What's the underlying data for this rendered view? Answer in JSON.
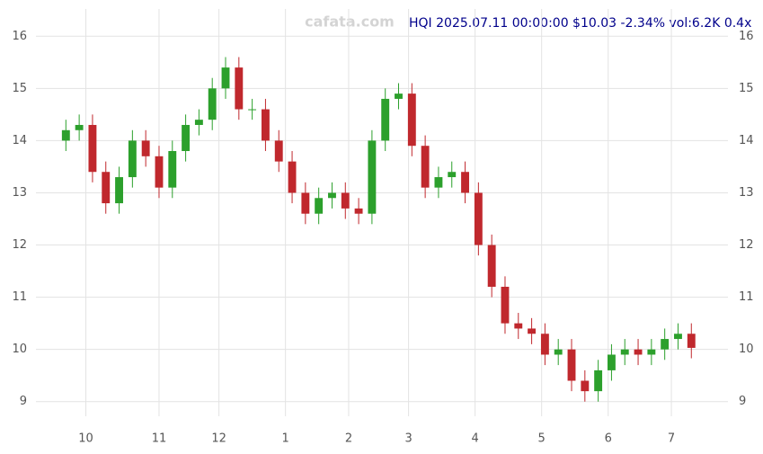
{
  "chart_data": {
    "type": "candlestick",
    "title": "HQI 2025.07.11 00:00:00 $10.03 -2.34% vol:6.2K 0.4x",
    "watermark": "cafata.com",
    "x": [
      0,
      4,
      8,
      12,
      16,
      20,
      24,
      28,
      32,
      36,
      40,
      44,
      48,
      52,
      56,
      60,
      64,
      68,
      72,
      76,
      80,
      84,
      88,
      92,
      96,
      100,
      104,
      108,
      112,
      116,
      120,
      124,
      128,
      132,
      136,
      140,
      144,
      148,
      152,
      156,
      160,
      164,
      168,
      172,
      176,
      180,
      184,
      188
    ],
    "open": [
      14.0,
      14.2,
      14.3,
      13.4,
      12.8,
      13.3,
      14.0,
      13.7,
      13.1,
      13.8,
      14.3,
      14.4,
      15.0,
      15.4,
      14.6,
      14.6,
      14.0,
      13.6,
      13.0,
      12.6,
      12.9,
      13.0,
      12.7,
      12.6,
      14.0,
      14.8,
      14.9,
      13.9,
      13.1,
      13.3,
      13.4,
      13.0,
      12.0,
      11.2,
      10.5,
      10.4,
      10.3,
      9.9,
      10.0,
      9.4,
      9.2,
      9.6,
      9.9,
      10.0,
      9.9,
      10.0,
      10.2,
      10.3
    ],
    "high": [
      14.4,
      14.5,
      14.5,
      13.6,
      13.5,
      14.2,
      14.2,
      13.9,
      14.0,
      14.5,
      14.6,
      15.2,
      15.6,
      15.6,
      14.8,
      14.8,
      14.2,
      13.8,
      13.2,
      13.1,
      13.2,
      13.2,
      12.9,
      14.2,
      15.0,
      15.1,
      15.1,
      14.1,
      13.5,
      13.6,
      13.6,
      13.2,
      12.2,
      11.4,
      10.7,
      10.6,
      10.5,
      10.2,
      10.2,
      9.6,
      9.8,
      10.1,
      10.2,
      10.2,
      10.2,
      10.4,
      10.5,
      10.5
    ],
    "low": [
      13.8,
      14.0,
      13.2,
      12.6,
      12.6,
      13.1,
      13.5,
      12.9,
      12.9,
      13.6,
      14.1,
      14.2,
      14.8,
      14.4,
      14.4,
      13.8,
      13.4,
      12.8,
      12.4,
      12.4,
      12.7,
      12.5,
      12.4,
      12.4,
      13.8,
      14.6,
      13.7,
      12.9,
      12.9,
      13.1,
      12.8,
      11.8,
      11.0,
      10.3,
      10.2,
      10.1,
      9.7,
      9.7,
      9.2,
      9.0,
      9.0,
      9.4,
      9.7,
      9.7,
      9.7,
      9.8,
      10.0,
      9.83
    ],
    "close": [
      14.2,
      14.3,
      13.4,
      12.8,
      13.3,
      14.0,
      13.7,
      13.1,
      13.8,
      14.3,
      14.4,
      15.0,
      15.4,
      14.6,
      14.6,
      14.0,
      13.6,
      13.0,
      12.6,
      12.9,
      13.0,
      12.7,
      12.6,
      14.0,
      14.8,
      14.9,
      13.9,
      13.1,
      13.3,
      13.4,
      13.0,
      12.0,
      11.2,
      10.5,
      10.4,
      10.3,
      9.9,
      10.0,
      9.4,
      9.2,
      9.6,
      9.9,
      10.0,
      9.9,
      10.0,
      10.2,
      10.3,
      10.03
    ],
    "up_color": "#2ca02c",
    "down_color": "#c0282d",
    "xlim": [
      -9,
      199
    ],
    "xticks": [
      {
        "value": 6,
        "label": "10"
      },
      {
        "value": 28,
        "label": "11"
      },
      {
        "value": 46,
        "label": "12"
      },
      {
        "value": 66,
        "label": "1"
      },
      {
        "value": 85,
        "label": "2"
      },
      {
        "value": 103,
        "label": "3"
      },
      {
        "value": 123,
        "label": "4"
      },
      {
        "value": 143,
        "label": "5"
      },
      {
        "value": 163,
        "label": "6"
      },
      {
        "value": 182,
        "label": "7"
      }
    ],
    "ylim": [
      8.72,
      16.28
    ],
    "yticks": [
      9,
      10,
      11,
      12,
      13,
      14,
      15,
      16
    ],
    "grid": true
  }
}
